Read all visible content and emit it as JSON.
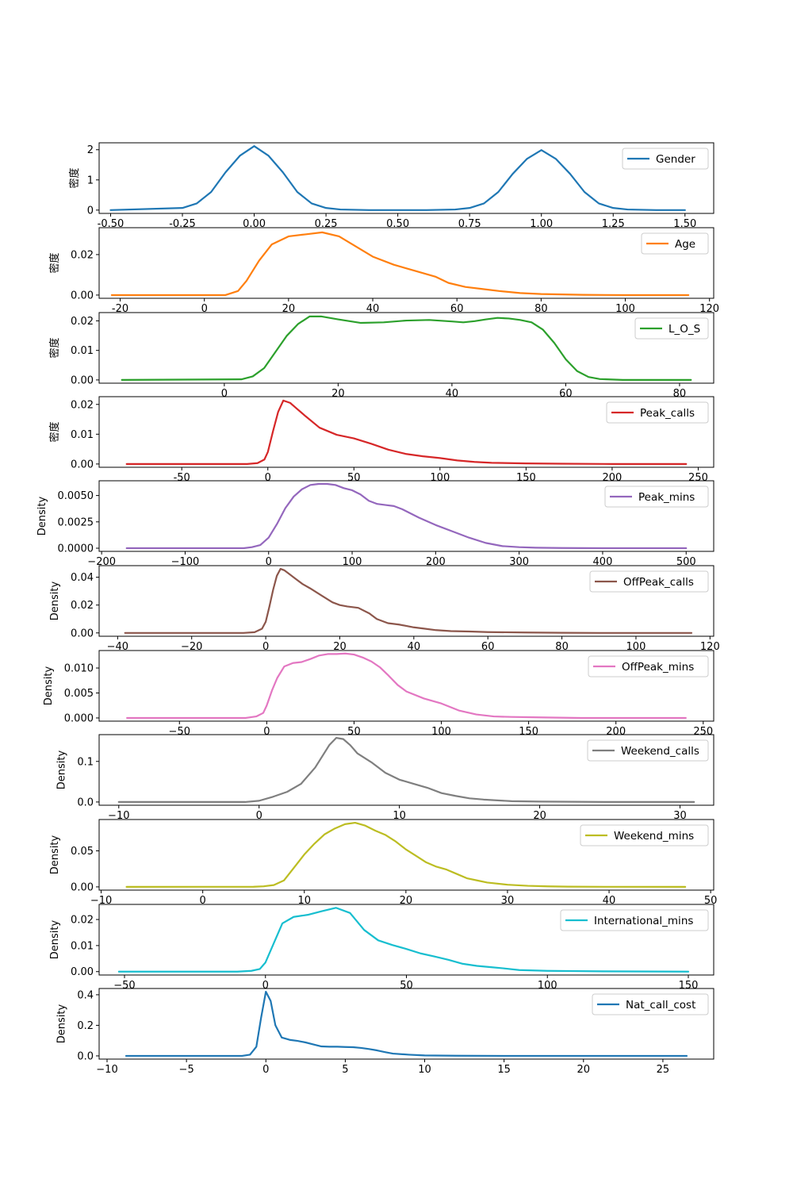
{
  "chart_data": [
    {
      "type": "line",
      "series": [
        {
          "name": "Gender",
          "color": "#1f77b4",
          "x": [
            -0.5,
            -0.25,
            -0.2,
            -0.15,
            -0.1,
            -0.05,
            0,
            0.05,
            0.1,
            0.15,
            0.2,
            0.25,
            0.3,
            0.4,
            0.5,
            0.6,
            0.7,
            0.75,
            0.8,
            0.85,
            0.9,
            0.95,
            1,
            1.05,
            1.1,
            1.15,
            1.2,
            1.25,
            1.3,
            1.4,
            1.5
          ],
          "y": [
            0,
            0.07,
            0.22,
            0.6,
            1.25,
            1.8,
            2.12,
            1.8,
            1.25,
            0.6,
            0.22,
            0.07,
            0.02,
            0,
            0,
            0,
            0.02,
            0.07,
            0.22,
            0.6,
            1.2,
            1.7,
            1.99,
            1.7,
            1.2,
            0.6,
            0.22,
            0.07,
            0.02,
            0,
            0
          ]
        }
      ],
      "ylabel": "密度",
      "xticks": [
        -0.5,
        -0.25,
        0,
        0.25,
        0.5,
        0.75,
        1,
        1.25,
        1.5
      ],
      "xticklabels": [
        "-0.50",
        "-0.25",
        "0.00",
        "0.25",
        "0.50",
        "0.75",
        "1.00",
        "1.25",
        "1.50"
      ],
      "xlim": [
        -0.54,
        1.6
      ],
      "yticks": [
        0,
        1,
        2
      ],
      "yticklabels": [
        "0",
        "1",
        "2"
      ],
      "ylim": [
        -0.11,
        2.23
      ],
      "legend": "upper right"
    },
    {
      "type": "line",
      "series": [
        {
          "name": "Age",
          "color": "#ff7f0e",
          "x": [
            -22,
            5,
            8,
            10,
            13,
            16,
            20,
            24,
            28,
            32,
            36,
            40,
            45,
            50,
            55,
            58,
            62,
            66,
            70,
            75,
            80,
            85,
            90,
            100,
            115
          ],
          "y": [
            0,
            0,
            0.002,
            0.007,
            0.017,
            0.025,
            0.029,
            0.03,
            0.031,
            0.029,
            0.024,
            0.019,
            0.015,
            0.012,
            0.009,
            0.006,
            0.004,
            0.003,
            0.002,
            0.001,
            0.0005,
            0.0003,
            0.0001,
            0,
            0
          ],
          "color_note": ""
        }
      ],
      "ylabel": "密度",
      "xticks": [
        -20,
        0,
        20,
        40,
        60,
        80,
        100,
        120
      ],
      "xticklabels": [
        "-20",
        "0",
        "20",
        "40",
        "60",
        "80",
        "100",
        "120"
      ],
      "xlim": [
        -25,
        121
      ],
      "yticks": [
        0,
        0.02
      ],
      "yticklabels": [
        "0.00",
        "0.02"
      ],
      "ylim": [
        -0.0016,
        0.0333
      ],
      "legend": "upper right"
    },
    {
      "type": "line",
      "series": [
        {
          "name": "L_O_S",
          "color": "#2ca02c",
          "x": [
            -18,
            3,
            5,
            7,
            9,
            11,
            13,
            15,
            17,
            20,
            24,
            28,
            32,
            36,
            40,
            42,
            44,
            46,
            48,
            50,
            52,
            54,
            56,
            58,
            60,
            62,
            64,
            66,
            70,
            82
          ],
          "y": [
            0,
            0.0002,
            0.0012,
            0.004,
            0.0095,
            0.015,
            0.019,
            0.0215,
            0.0215,
            0.0205,
            0.0193,
            0.0195,
            0.0201,
            0.0203,
            0.0198,
            0.0195,
            0.0199,
            0.0205,
            0.021,
            0.0208,
            0.0203,
            0.0195,
            0.017,
            0.0125,
            0.007,
            0.003,
            0.001,
            0.0003,
            0,
            0
          ]
        }
      ],
      "ylabel": "密度",
      "xticks": [
        0,
        20,
        40,
        60,
        80
      ],
      "xticklabels": [
        "0",
        "20",
        "40",
        "60",
        "80"
      ],
      "xlim": [
        -22,
        86
      ],
      "yticks": [
        0,
        0.01,
        0.02
      ],
      "yticklabels": [
        "0.00",
        "0.01",
        "0.02"
      ],
      "ylim": [
        -0.0011,
        0.0228
      ],
      "legend": "upper right"
    },
    {
      "type": "line",
      "series": [
        {
          "name": "Peak_calls",
          "color": "#d62728",
          "x": [
            -82,
            -12,
            -6,
            -2,
            0,
            3,
            6,
            9,
            13,
            17,
            22,
            30,
            40,
            50,
            60,
            70,
            80,
            90,
            100,
            110,
            120,
            130,
            150,
            170,
            200,
            243
          ],
          "y": [
            0,
            0,
            0.0003,
            0.0015,
            0.004,
            0.011,
            0.0175,
            0.0213,
            0.0205,
            0.0185,
            0.016,
            0.0122,
            0.0098,
            0.0086,
            0.0068,
            0.0048,
            0.0034,
            0.0026,
            0.002,
            0.0012,
            0.0007,
            0.0004,
            0.0002,
            0.0001,
            0,
            0
          ]
        }
      ],
      "ylabel": "密度",
      "xticks": [
        -50,
        0,
        50,
        100,
        150,
        200,
        250
      ],
      "xticklabels": [
        "-50",
        "0",
        "50",
        "100",
        "150",
        "200",
        "250"
      ],
      "xlim": [
        -98,
        259
      ],
      "yticks": [
        0,
        0.01,
        0.02
      ],
      "yticklabels": [
        "0.00",
        "0.01",
        "0.02"
      ],
      "ylim": [
        -0.0011,
        0.0226
      ],
      "legend": "upper right"
    },
    {
      "type": "line",
      "series": [
        {
          "name": "Peak_mins",
          "color": "#9467bd",
          "x": [
            -170,
            -30,
            -20,
            -10,
            0,
            10,
            20,
            30,
            40,
            50,
            60,
            70,
            80,
            90,
            100,
            110,
            120,
            130,
            140,
            150,
            160,
            180,
            200,
            220,
            240,
            260,
            280,
            300,
            320,
            350,
            400,
            500
          ],
          "y": [
            0,
            0,
            0.0001,
            0.0003,
            0.001,
            0.0023,
            0.0038,
            0.0049,
            0.0056,
            0.006,
            0.0061,
            0.0061,
            0.006,
            0.0057,
            0.0055,
            0.0051,
            0.0045,
            0.0042,
            0.0041,
            0.004,
            0.0037,
            0.0029,
            0.0022,
            0.0016,
            0.001,
            0.0005,
            0.0002,
            0.0001,
            5e-05,
            2e-05,
            0,
            0
          ]
        }
      ],
      "ylabel": "Density",
      "xticks": [
        -200,
        -100,
        0,
        100,
        200,
        300,
        400,
        500
      ],
      "xticklabels": [
        "−200",
        "−100",
        "0",
        "100",
        "200",
        "300",
        "400",
        "500"
      ],
      "xlim": [
        -203,
        533
      ],
      "yticks": [
        0,
        0.0025,
        0.005
      ],
      "yticklabels": [
        "0.0000",
        "0.0025",
        "0.0050"
      ],
      "ylim": [
        -0.0003,
        0.0064
      ],
      "legend": "upper right"
    },
    {
      "type": "line",
      "series": [
        {
          "name": "OffPeak_calls",
          "color": "#8c564b",
          "x": [
            -38,
            -6,
            -3,
            -1,
            0,
            1,
            2,
            3,
            4,
            5,
            6,
            8,
            10,
            12,
            15,
            18,
            20,
            22,
            25,
            28,
            30,
            33,
            36,
            40,
            43,
            46,
            50,
            55,
            60,
            70,
            80,
            90,
            115
          ],
          "y": [
            0,
            0,
            0.0005,
            0.003,
            0.008,
            0.019,
            0.031,
            0.041,
            0.046,
            0.045,
            0.043,
            0.039,
            0.035,
            0.032,
            0.027,
            0.022,
            0.02,
            0.019,
            0.018,
            0.014,
            0.01,
            0.007,
            0.006,
            0.004,
            0.003,
            0.002,
            0.0013,
            0.001,
            0.0006,
            0.0003,
            0.0001,
            0,
            0
          ]
        }
      ],
      "ylabel": "Density",
      "xticks": [
        -40,
        -20,
        0,
        20,
        40,
        60,
        80,
        100,
        120
      ],
      "xticklabels": [
        "−40",
        "−20",
        "0",
        "20",
        "40",
        "60",
        "80",
        "100",
        "120"
      ],
      "xlim": [
        -45,
        121
      ],
      "yticks": [
        0,
        0.02,
        0.04
      ],
      "yticklabels": [
        "0.00",
        "0.02",
        "0.04"
      ],
      "ylim": [
        -0.0024,
        0.0483
      ],
      "legend": "upper right"
    },
    {
      "type": "line",
      "series": [
        {
          "name": "OffPeak_mins",
          "color": "#e377c2",
          "x": [
            -80,
            -12,
            -6,
            -2,
            0,
            3,
            6,
            10,
            15,
            20,
            25,
            30,
            35,
            40,
            45,
            50,
            55,
            60,
            65,
            70,
            75,
            80,
            90,
            100,
            110,
            120,
            130,
            140,
            160,
            180,
            240
          ],
          "y": [
            0,
            0,
            0.0003,
            0.001,
            0.0025,
            0.0055,
            0.008,
            0.0103,
            0.011,
            0.0112,
            0.0118,
            0.0125,
            0.0128,
            0.0128,
            0.0129,
            0.0127,
            0.0121,
            0.0113,
            0.0101,
            0.0084,
            0.0066,
            0.0053,
            0.0039,
            0.0029,
            0.0015,
            0.0007,
            0.0003,
            0.0002,
            0.0001,
            0,
            0
          ]
        }
      ],
      "ylabel": "Density",
      "xticks": [
        -50,
        0,
        50,
        100,
        150,
        200,
        250
      ],
      "xticklabels": [
        "−50",
        "0",
        "50",
        "100",
        "150",
        "200",
        "250"
      ],
      "xlim": [
        -96,
        256
      ],
      "yticks": [
        0,
        0.005,
        0.01
      ],
      "yticklabels": [
        "0.000",
        "0.005",
        "0.010"
      ],
      "ylim": [
        -0.00064,
        0.0135
      ],
      "legend": "upper right"
    },
    {
      "type": "line",
      "series": [
        {
          "name": "Weekend_calls",
          "color": "#7f7f7f",
          "x": [
            -10,
            -1,
            0,
            1,
            2,
            3,
            4,
            5,
            5.5,
            6,
            6.5,
            7,
            8,
            9,
            10,
            11,
            12,
            13,
            14,
            15,
            16,
            18,
            20,
            25,
            31
          ],
          "y": [
            0,
            0,
            0.003,
            0.013,
            0.025,
            0.045,
            0.085,
            0.14,
            0.158,
            0.155,
            0.14,
            0.12,
            0.098,
            0.072,
            0.055,
            0.045,
            0.035,
            0.022,
            0.015,
            0.009,
            0.006,
            0.002,
            0.001,
            0,
            0
          ]
        }
      ],
      "ylabel": "Density",
      "xticks": [
        -10,
        0,
        10,
        20,
        30
      ],
      "xticklabels": [
        "−10",
        "0",
        "10",
        "20",
        "30"
      ],
      "xlim": [
        -11.4,
        32.4
      ],
      "yticks": [
        0,
        0.1
      ],
      "yticklabels": [
        "0.0",
        "0.1"
      ],
      "ylim": [
        -0.008,
        0.166
      ],
      "legend": "upper right"
    },
    {
      "type": "line",
      "series": [
        {
          "name": "Weekend_mins",
          "color": "#bcbd22",
          "x": [
            -7.5,
            5,
            6,
            7,
            8,
            9,
            10,
            11,
            12,
            13,
            14,
            15,
            16,
            17,
            18,
            19,
            20,
            21,
            22,
            23,
            24,
            25,
            26,
            27,
            28,
            30,
            32,
            34,
            36,
            40,
            47.5
          ],
          "y": [
            0,
            0.0002,
            0.0008,
            0.0025,
            0.009,
            0.027,
            0.045,
            0.06,
            0.073,
            0.081,
            0.087,
            0.089,
            0.085,
            0.078,
            0.072,
            0.063,
            0.052,
            0.043,
            0.034,
            0.028,
            0.024,
            0.018,
            0.012,
            0.009,
            0.006,
            0.003,
            0.0015,
            0.0007,
            0.0003,
            0.0001,
            0
          ]
        }
      ],
      "ylabel": "Density",
      "xticks": [
        -10,
        0,
        10,
        20,
        30,
        40,
        50
      ],
      "xticklabels": [
        "−10",
        "0",
        "10",
        "20",
        "30",
        "40",
        "50"
      ],
      "xlim": [
        -10.2,
        50.3
      ],
      "yticks": [
        0,
        0.05
      ],
      "yticklabels": [
        "0.00",
        "0.05"
      ],
      "ylim": [
        -0.0045,
        0.0935
      ],
      "legend": "upper right"
    },
    {
      "type": "line",
      "series": [
        {
          "name": "International_mins",
          "color": "#17becf",
          "x": [
            -52,
            -10,
            -5,
            -2,
            0,
            3,
            6,
            10,
            15,
            20,
            25,
            30,
            35,
            40,
            45,
            50,
            55,
            60,
            65,
            70,
            75,
            80,
            85,
            90,
            100,
            110,
            120,
            150
          ],
          "y": [
            0,
            0,
            0.0003,
            0.001,
            0.0035,
            0.011,
            0.0185,
            0.021,
            0.0218,
            0.0232,
            0.0245,
            0.0225,
            0.016,
            0.012,
            0.0102,
            0.0087,
            0.007,
            0.0058,
            0.0045,
            0.003,
            0.0022,
            0.0017,
            0.0012,
            0.0006,
            0.0003,
            0.0002,
            0.0001,
            0
          ]
        }
      ],
      "ylabel": "Density",
      "xticks": [
        -50,
        0,
        50,
        100,
        150
      ],
      "xticklabels": [
        "−50",
        "0",
        "50",
        "100",
        "150"
      ],
      "xlim": [
        -59,
        159
      ],
      "yticks": [
        0,
        0.01,
        0.02
      ],
      "yticklabels": [
        "0.00",
        "0.01",
        "0.02"
      ],
      "ylim": [
        -0.0013,
        0.0258
      ],
      "legend": "upper right"
    },
    {
      "type": "line",
      "series": [
        {
          "name": "Nat_call_cost",
          "color": "#1f77b4",
          "x": [
            -8.8,
            -1.5,
            -1,
            -0.6,
            -0.3,
            0,
            0.3,
            0.6,
            1,
            1.5,
            2,
            2.5,
            3,
            3.5,
            4,
            4.5,
            5,
            5.5,
            6,
            6.5,
            7,
            7.5,
            8,
            9,
            10,
            12,
            15,
            20,
            26.5
          ],
          "y": [
            0,
            0,
            0.008,
            0.06,
            0.25,
            0.42,
            0.36,
            0.2,
            0.12,
            0.105,
            0.098,
            0.088,
            0.075,
            0.062,
            0.06,
            0.06,
            0.058,
            0.057,
            0.052,
            0.045,
            0.036,
            0.025,
            0.015,
            0.008,
            0.003,
            0.001,
            0,
            0,
            0
          ]
        }
      ],
      "ylabel": "Density",
      "xticks": [
        -10,
        -5,
        0,
        5,
        10,
        15,
        20,
        25
      ],
      "xticklabels": [
        "−10",
        "−5",
        "0",
        "5",
        "10",
        "15",
        "20",
        "25"
      ],
      "xlim": [
        -10.5,
        28.2
      ],
      "yticks": [
        0,
        0.2,
        0.4
      ],
      "yticklabels": [
        "0.0",
        "0.2",
        "0.4"
      ],
      "ylim": [
        -0.021,
        0.441
      ],
      "legend": "upper right"
    }
  ]
}
